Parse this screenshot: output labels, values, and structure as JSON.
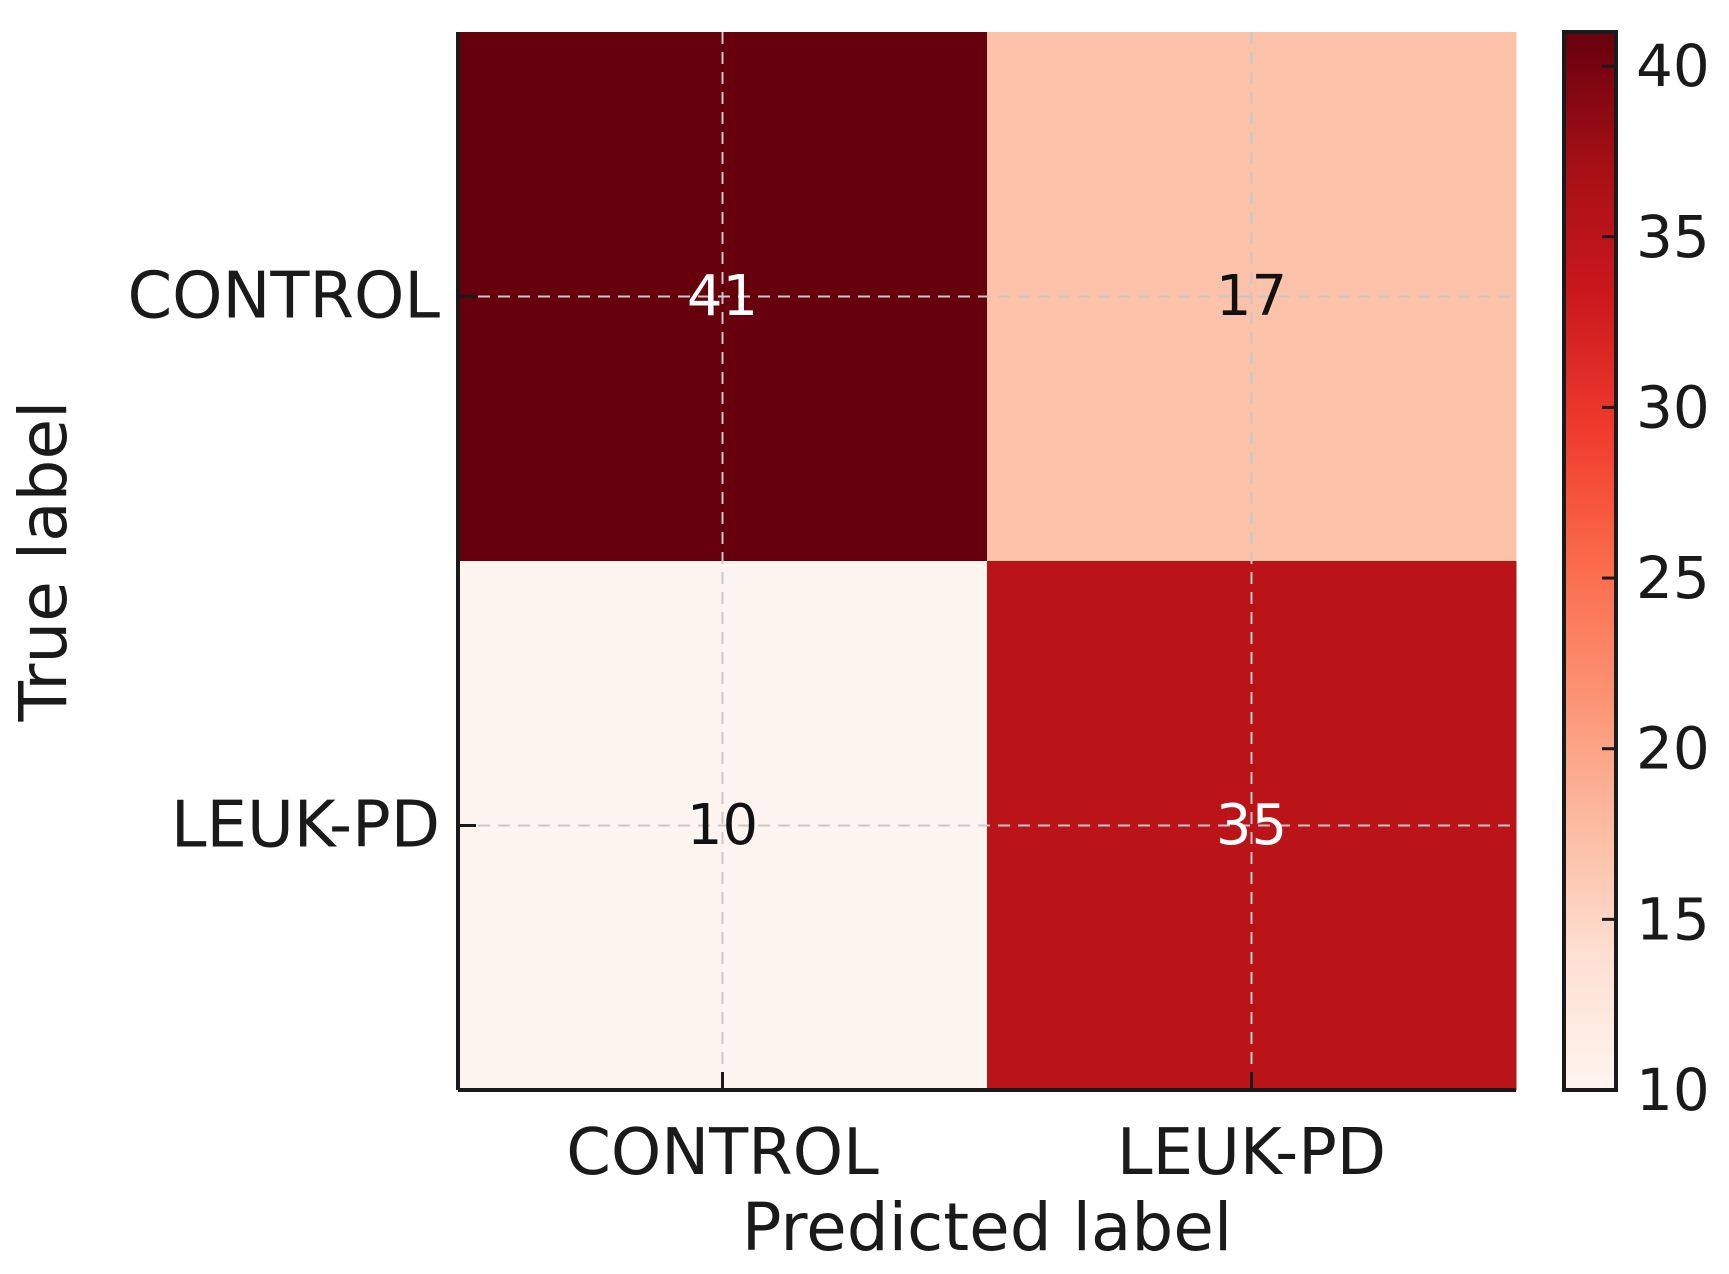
{
  "chart_data": {
    "type": "heatmap",
    "title": "",
    "xlabel": "Predicted label",
    "ylabel": "True label",
    "x_categories": [
      "CONTROL",
      "LEUK-PD"
    ],
    "y_categories": [
      "CONTROL",
      "LEUK-PD"
    ],
    "values": [
      [
        41,
        17
      ],
      [
        10,
        35
      ]
    ],
    "colorbar": {
      "range": [
        10,
        41
      ],
      "ticks": [
        10,
        15,
        20,
        25,
        30,
        35,
        40
      ],
      "colormap": "Reds",
      "colors": [
        "#fff5f0",
        "#fee0d2",
        "#fcbba1",
        "#fc9272",
        "#fb6a4a",
        "#ef3b2c",
        "#cb181d",
        "#a50f15",
        "#67000d"
      ]
    },
    "grid": true
  }
}
